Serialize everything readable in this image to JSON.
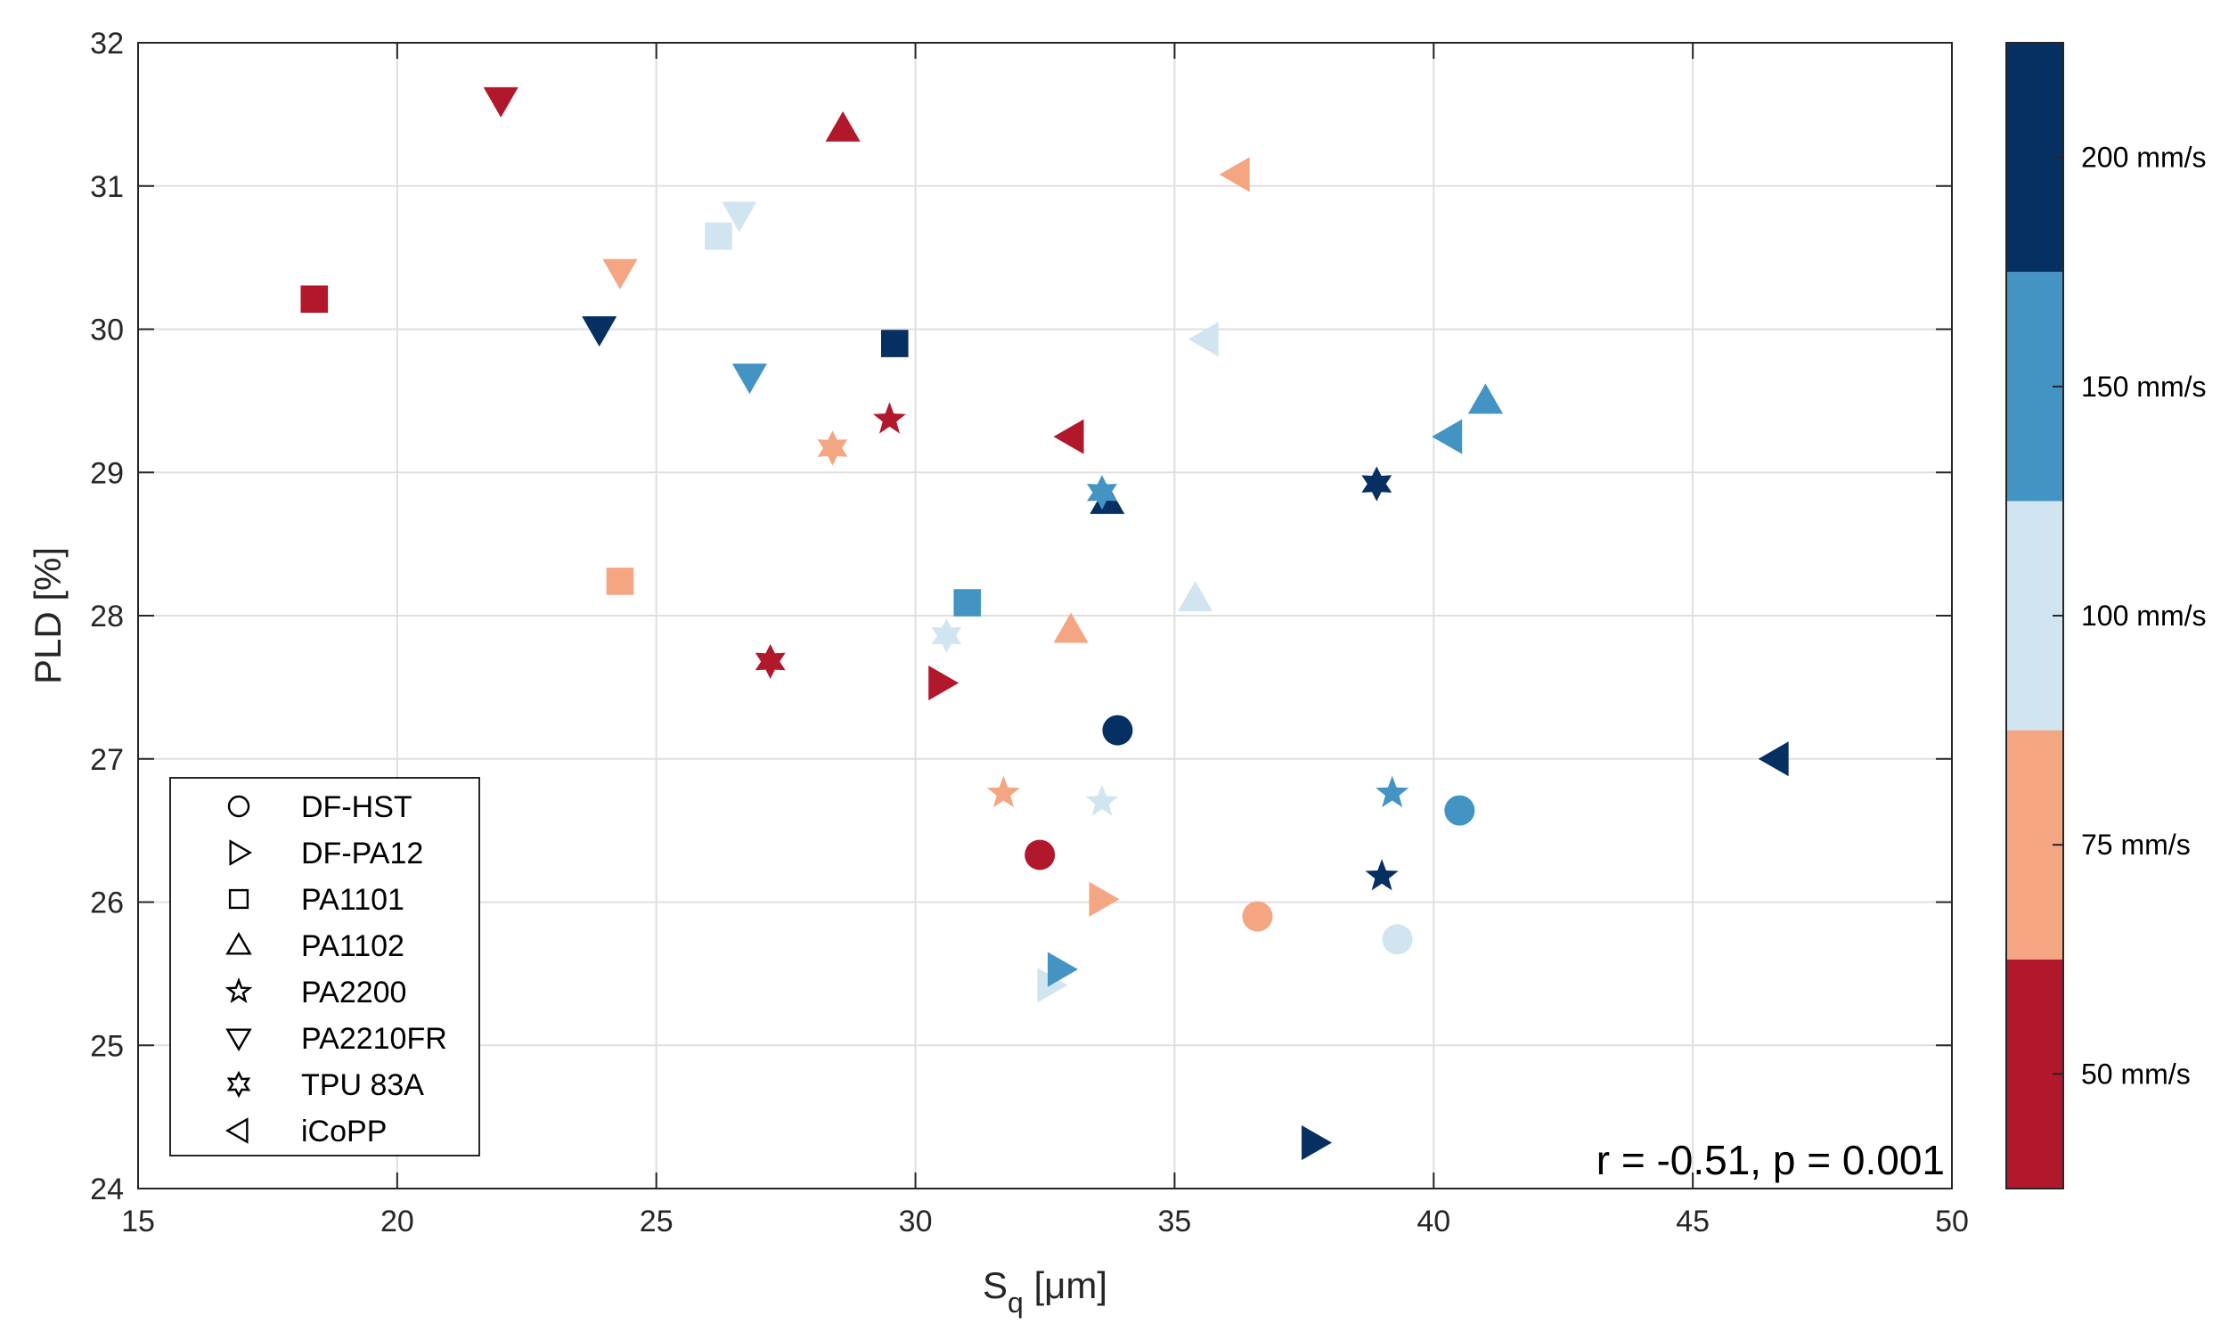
{
  "chart_data": {
    "type": "scatter",
    "xlabel": "S",
    "xlabel_sub": "q",
    "xlabel_unit": " [μm]",
    "ylabel": "PLD [%]",
    "xlim": [
      15,
      50
    ],
    "ylim": [
      24,
      32
    ],
    "xticks": [
      "15",
      "20",
      "25",
      "30",
      "35",
      "40",
      "45",
      "50"
    ],
    "yticks": [
      "24",
      "25",
      "26",
      "27",
      "28",
      "29",
      "30",
      "31",
      "32"
    ],
    "grid": true,
    "annotation": "r = -0.51, p = 0.001",
    "legend_position": "bottom-left",
    "materials": [
      {
        "name": "DF-HST",
        "marker": "circle"
      },
      {
        "name": "DF-PA12",
        "marker": "triangle-right"
      },
      {
        "name": "PA1101",
        "marker": "square"
      },
      {
        "name": "PA1102",
        "marker": "triangle-up"
      },
      {
        "name": "PA2200",
        "marker": "star5"
      },
      {
        "name": "PA2210FR",
        "marker": "triangle-down"
      },
      {
        "name": "TPU 83A",
        "marker": "star6"
      },
      {
        "name": "iCoPP",
        "marker": "triangle-left"
      }
    ],
    "speeds": [
      {
        "label": "50 mm/s",
        "color": "#b2182b"
      },
      {
        "label": "75 mm/s",
        "color": "#f4a582"
      },
      {
        "label": "100 mm/s",
        "color": "#d1e5f0"
      },
      {
        "label": "150 mm/s",
        "color": "#4393c3"
      },
      {
        "label": "200 mm/s",
        "color": "#053061"
      }
    ],
    "points": [
      {
        "material": "DF-HST",
        "speed": "50 mm/s",
        "x": 32.4,
        "y": 26.33
      },
      {
        "material": "DF-HST",
        "speed": "75 mm/s",
        "x": 36.6,
        "y": 25.9
      },
      {
        "material": "DF-HST",
        "speed": "100 mm/s",
        "x": 39.3,
        "y": 25.74
      },
      {
        "material": "DF-HST",
        "speed": "150 mm/s",
        "x": 40.5,
        "y": 26.64
      },
      {
        "material": "DF-HST",
        "speed": "200 mm/s",
        "x": 33.9,
        "y": 27.2
      },
      {
        "material": "DF-PA12",
        "speed": "50 mm/s",
        "x": 30.5,
        "y": 27.53
      },
      {
        "material": "DF-PA12",
        "speed": "75 mm/s",
        "x": 33.6,
        "y": 26.02
      },
      {
        "material": "DF-PA12",
        "speed": "100 mm/s",
        "x": 32.6,
        "y": 25.42
      },
      {
        "material": "DF-PA12",
        "speed": "150 mm/s",
        "x": 32.8,
        "y": 25.53
      },
      {
        "material": "DF-PA12",
        "speed": "200 mm/s",
        "x": 37.7,
        "y": 24.32
      },
      {
        "material": "PA1101",
        "speed": "50 mm/s",
        "x": 18.4,
        "y": 30.21
      },
      {
        "material": "PA1101",
        "speed": "75 mm/s",
        "x": 24.3,
        "y": 28.24
      },
      {
        "material": "PA1101",
        "speed": "100 mm/s",
        "x": 26.2,
        "y": 30.65
      },
      {
        "material": "PA1101",
        "speed": "150 mm/s",
        "x": 31.0,
        "y": 28.09
      },
      {
        "material": "PA1101",
        "speed": "200 mm/s",
        "x": 29.6,
        "y": 29.9
      },
      {
        "material": "PA1102",
        "speed": "50 mm/s",
        "x": 28.6,
        "y": 31.4
      },
      {
        "material": "PA1102",
        "speed": "75 mm/s",
        "x": 33.0,
        "y": 27.9
      },
      {
        "material": "PA1102",
        "speed": "100 mm/s",
        "x": 35.4,
        "y": 28.12
      },
      {
        "material": "PA1102",
        "speed": "150 mm/s",
        "x": 41.0,
        "y": 29.5
      },
      {
        "material": "PA1102",
        "speed": "200 mm/s",
        "x": 33.7,
        "y": 28.8
      },
      {
        "material": "PA2200",
        "speed": "50 mm/s",
        "x": 29.5,
        "y": 29.37
      },
      {
        "material": "PA2200",
        "speed": "75 mm/s",
        "x": 31.7,
        "y": 26.76
      },
      {
        "material": "PA2200",
        "speed": "100 mm/s",
        "x": 33.6,
        "y": 26.7
      },
      {
        "material": "PA2200",
        "speed": "150 mm/s",
        "x": 39.2,
        "y": 26.76
      },
      {
        "material": "PA2200",
        "speed": "200 mm/s",
        "x": 39.0,
        "y": 26.18
      },
      {
        "material": "PA2210FR",
        "speed": "50 mm/s",
        "x": 22.0,
        "y": 31.6
      },
      {
        "material": "PA2210FR",
        "speed": "75 mm/s",
        "x": 24.3,
        "y": 30.4
      },
      {
        "material": "PA2210FR",
        "speed": "100 mm/s",
        "x": 26.6,
        "y": 30.8
      },
      {
        "material": "PA2210FR",
        "speed": "150 mm/s",
        "x": 26.8,
        "y": 29.67
      },
      {
        "material": "PA2210FR",
        "speed": "200 mm/s",
        "x": 23.9,
        "y": 30.0
      },
      {
        "material": "TPU 83A",
        "speed": "50 mm/s",
        "x": 27.2,
        "y": 27.68
      },
      {
        "material": "TPU 83A",
        "speed": "75 mm/s",
        "x": 28.4,
        "y": 29.17
      },
      {
        "material": "TPU 83A",
        "speed": "100 mm/s",
        "x": 30.6,
        "y": 27.86
      },
      {
        "material": "TPU 83A",
        "speed": "150 mm/s",
        "x": 33.6,
        "y": 28.86
      },
      {
        "material": "TPU 83A",
        "speed": "200 mm/s",
        "x": 38.9,
        "y": 28.92
      },
      {
        "material": "iCoPP",
        "speed": "50 mm/s",
        "x": 33.0,
        "y": 29.25
      },
      {
        "material": "iCoPP",
        "speed": "75 mm/s",
        "x": 36.2,
        "y": 31.08
      },
      {
        "material": "iCoPP",
        "speed": "100 mm/s",
        "x": 35.6,
        "y": 29.93
      },
      {
        "material": "iCoPP",
        "speed": "150 mm/s",
        "x": 40.3,
        "y": 29.25
      },
      {
        "material": "iCoPP",
        "speed": "200 mm/s",
        "x": 46.6,
        "y": 27.0
      }
    ]
  }
}
